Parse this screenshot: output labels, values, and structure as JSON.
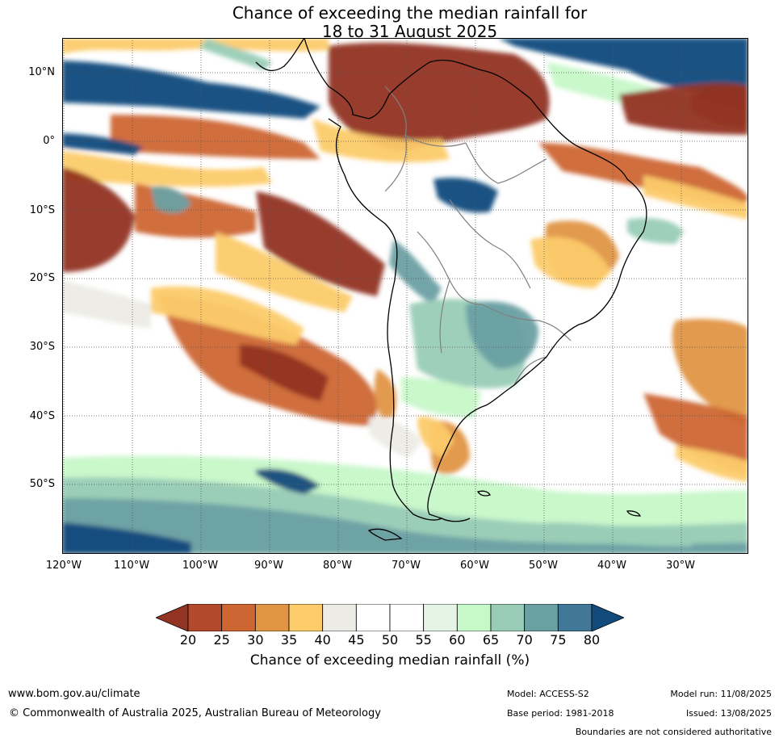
{
  "title": {
    "line1": "Chance of exceeding the median rainfall for",
    "line2": "18 to 31 August 2025"
  },
  "lat_labels": [
    "10°N",
    "0°",
    "10°S",
    "20°S",
    "30°S",
    "40°S",
    "50°S"
  ],
  "lon_labels": [
    "120°W",
    "110°W",
    "100°W",
    "90°W",
    "80°W",
    "70°W",
    "60°W",
    "50°W",
    "40°W",
    "30°W"
  ],
  "colorbar": {
    "ticks": [
      "20",
      "25",
      "30",
      "35",
      "40",
      "45",
      "50",
      "55",
      "60",
      "65",
      "70",
      "75",
      "80"
    ],
    "label": "Chance of exceeding median rainfall (%)",
    "colors": [
      "#923421",
      "#b1492a",
      "#cd6633",
      "#e09544",
      "#fccb6a",
      "#ecebe5",
      "#ffffff",
      "#ffffff",
      "#e6f4e6",
      "#c6f8c8",
      "#99ccb7",
      "#6ba0a3",
      "#417898",
      "#124a7c"
    ]
  },
  "map": {
    "colors": {
      "dry_strong": "#923421",
      "dry": "#cd6633",
      "dry_mod": "#e09544",
      "dry_weak": "#fccb6a",
      "near": "#ecebe5",
      "wet_weak": "#c6f8c8",
      "wet_mod": "#99ccb7",
      "wet": "#6ba0a3",
      "wet_strong": "#124a7c",
      "coast": "#000000",
      "borders": "#808080"
    }
  },
  "footer": {
    "url": "www.bom.gov.au/climate",
    "copyright": "© Commonwealth of Australia 2025, Australian Bureau of Meteorology",
    "model": "Model: ACCESS-S2",
    "base_period": "Base period: 1981-2018",
    "model_run": "Model run: 11/08/2025",
    "issued": "Issued: 13/08/2025",
    "boundaries": "Boundaries are not considered authoritative"
  }
}
